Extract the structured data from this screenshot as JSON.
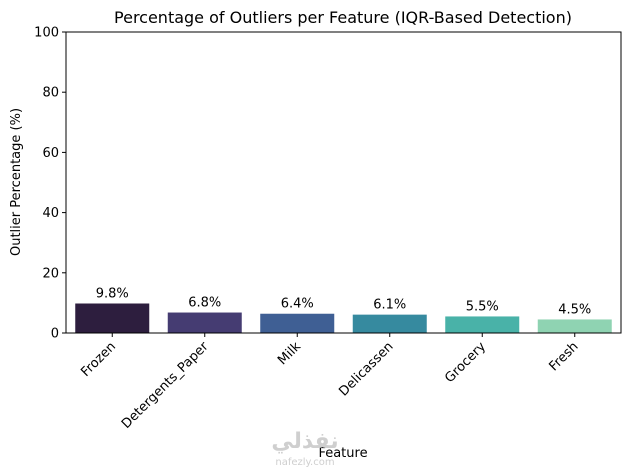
{
  "chart_data": {
    "type": "bar",
    "title": "Percentage of Outliers per Feature (IQR-Based Detection)",
    "xlabel": "Feature",
    "ylabel": "Outlier Percentage (%)",
    "categories": [
      "Frozen",
      "Detergents_Paper",
      "Milk",
      "Delicassen",
      "Grocery",
      "Fresh"
    ],
    "values": [
      9.8,
      6.8,
      6.4,
      6.1,
      5.5,
      4.5
    ],
    "value_labels": [
      "9.8%",
      "6.8%",
      "6.4%",
      "6.1%",
      "5.5%",
      "4.5%"
    ],
    "colors": [
      "#2d1e3e",
      "#453c72",
      "#3f5f94",
      "#368a9f",
      "#49b2a8",
      "#8fd3b2"
    ],
    "ylim": [
      0,
      100
    ],
    "yticks": [
      0,
      20,
      40,
      60,
      80,
      100
    ],
    "grid": false
  },
  "watermark": {
    "arabic": "نفذلي",
    "latin": "nafezly.com"
  }
}
